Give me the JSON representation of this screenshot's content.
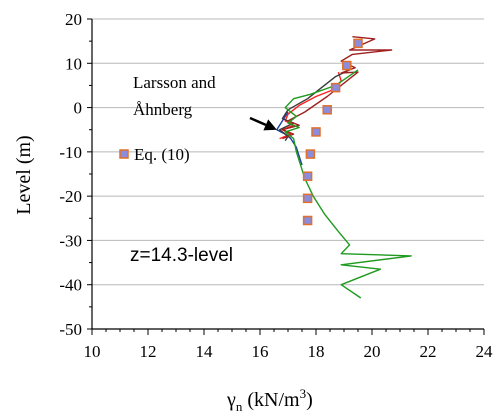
{
  "chart_data": {
    "type": "line",
    "xlabel": "γ",
    "xlabel_sub": "n",
    "xlabel_units": " (kN/m",
    "xlabel_sup": "3",
    "xlabel_close": ")",
    "ylabel": "Level (m)",
    "xlim": [
      10,
      24
    ],
    "ylim": [
      -50,
      20
    ],
    "xticks": [
      "10",
      "12",
      "14",
      "16",
      "18",
      "20",
      "22",
      "24"
    ],
    "yticks": [
      "20",
      "10",
      "0",
      "-10",
      "-20",
      "-30",
      "-40",
      "-50"
    ],
    "grid": "horizontal",
    "series": [
      {
        "color": "#1f3fa0",
        "points": [
          [
            17.0,
            -1
          ],
          [
            16.8,
            -3
          ],
          [
            16.6,
            -5
          ],
          [
            16.9,
            -6
          ],
          [
            17.1,
            -7
          ],
          [
            17.3,
            -9
          ],
          [
            17.4,
            -11
          ],
          [
            17.5,
            -13
          ]
        ]
      },
      {
        "color": "#ff2020",
        "points": [
          [
            18.8,
            8
          ],
          [
            18.9,
            6
          ],
          [
            18.6,
            4
          ],
          [
            18.0,
            2.5
          ],
          [
            17.4,
            0.5
          ],
          [
            17.0,
            -1.5
          ],
          [
            16.9,
            -3
          ],
          [
            17.2,
            -4
          ],
          [
            16.8,
            -5
          ],
          [
            17.1,
            -6
          ],
          [
            16.7,
            -7
          ]
        ]
      },
      {
        "color": "#3a3a3a",
        "points": [
          [
            19.2,
            8.5
          ],
          [
            18.7,
            7
          ],
          [
            18.2,
            4.5
          ],
          [
            17.7,
            2
          ],
          [
            17.0,
            -0.5
          ],
          [
            16.8,
            -2.5
          ],
          [
            17.2,
            -3.5
          ],
          [
            16.7,
            -5
          ],
          [
            17.0,
            -6.5
          ],
          [
            16.9,
            -7.5
          ]
        ]
      },
      {
        "color": "#a02020",
        "points": [
          [
            19.3,
            16
          ],
          [
            20.1,
            15.5
          ],
          [
            19.2,
            13
          ],
          [
            20.7,
            13
          ],
          [
            19.3,
            12
          ],
          [
            18.9,
            10.5
          ],
          [
            19.4,
            9
          ],
          [
            18.9,
            7.8
          ],
          [
            19.5,
            8
          ],
          [
            18.4,
            2.5
          ],
          [
            17.6,
            -1
          ],
          [
            17.0,
            -3
          ],
          [
            17.4,
            -4
          ],
          [
            16.8,
            -5
          ],
          [
            17.2,
            -6
          ],
          [
            16.8,
            -7
          ]
        ]
      },
      {
        "color": "#1f9a1f",
        "points": [
          [
            19.5,
            8.5
          ],
          [
            18.7,
            5
          ],
          [
            17.8,
            3
          ],
          [
            17.2,
            2
          ],
          [
            16.9,
            0
          ],
          [
            17.3,
            -2
          ],
          [
            17.0,
            -3.5
          ],
          [
            17.4,
            -4.5
          ],
          [
            16.9,
            -5.5
          ],
          [
            17.2,
            -7
          ],
          [
            17.3,
            -10
          ],
          [
            17.5,
            -14
          ],
          [
            17.6,
            -16
          ],
          [
            17.9,
            -20
          ],
          [
            18.3,
            -24
          ],
          [
            18.8,
            -28
          ],
          [
            19.2,
            -31
          ],
          [
            18.9,
            -33
          ],
          [
            21.4,
            -33.5
          ],
          [
            18.9,
            -35.5
          ],
          [
            20.3,
            -36.5
          ],
          [
            18.9,
            -40
          ],
          [
            19.6,
            -43
          ]
        ]
      }
    ],
    "markers": {
      "name": "Eq. (10)",
      "fill": "#8c8cdc",
      "stroke": "#e0702a",
      "points": [
        [
          19.5,
          14.5
        ],
        [
          19.1,
          9.5
        ],
        [
          18.7,
          4.5
        ],
        [
          18.4,
          -0.5
        ],
        [
          18.0,
          -5.5
        ],
        [
          17.8,
          -10.5
        ],
        [
          17.7,
          -15.5
        ],
        [
          17.7,
          -20.5
        ],
        [
          17.7,
          -25.5
        ]
      ]
    },
    "legend": {
      "label": "Eq. (10)",
      "position": "left"
    },
    "annotations": {
      "arrow_label_line1": "Larsson and",
      "arrow_label_line2": "Åhnberg",
      "arrow_target": [
        16.6,
        -5
      ],
      "note": "z=14.3-level"
    }
  }
}
